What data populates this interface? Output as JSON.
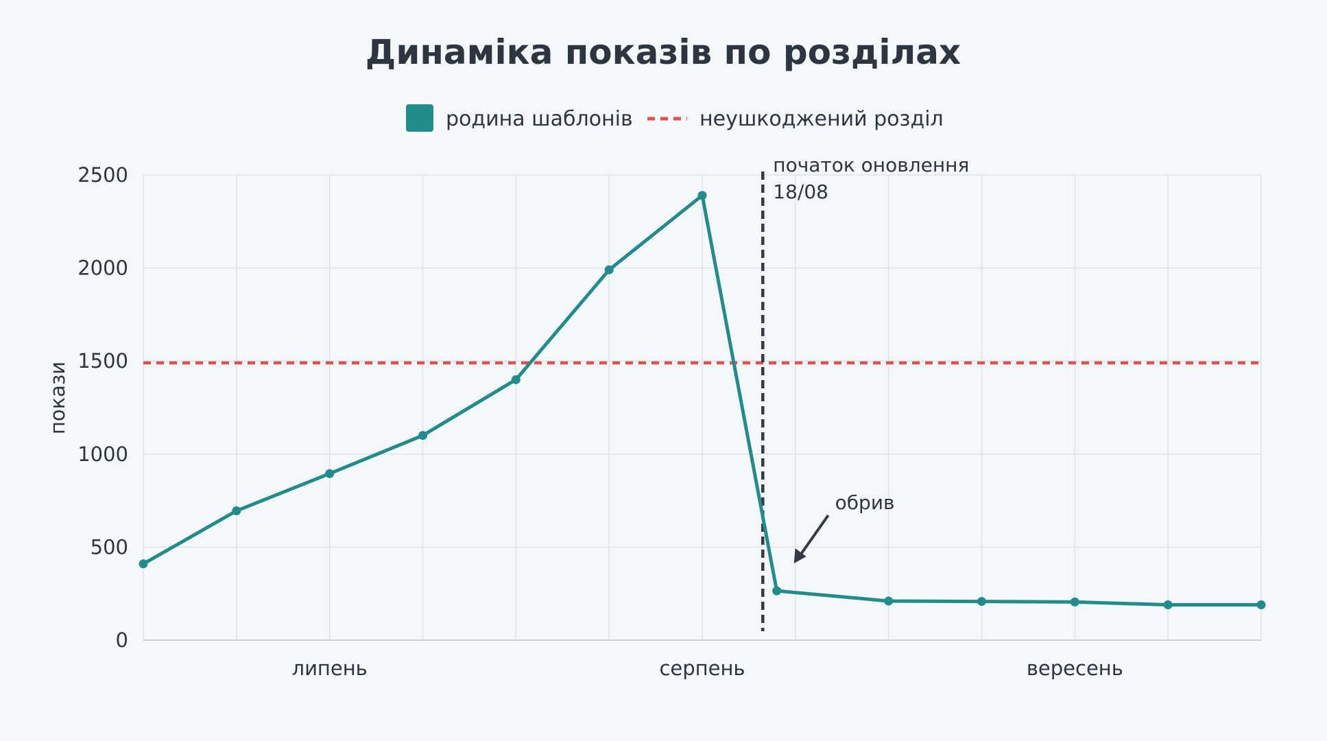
{
  "chart_data": {
    "type": "line",
    "title": "Динаміка показів по розділах",
    "ylabel": "покази",
    "xlabel": "",
    "ylim": [
      0,
      2500
    ],
    "yticks": [
      "0",
      "500",
      "1000",
      "1500",
      "2000",
      "2500"
    ],
    "xlim": [
      0,
      12
    ],
    "month_labels": [
      {
        "label": "липень",
        "x": 2
      },
      {
        "label": "серпень",
        "x": 6
      },
      {
        "label": "вересень",
        "x": 10
      }
    ],
    "grid": true,
    "legend_placement": "top-center",
    "series": [
      {
        "name": "родина шаблонів",
        "color": "#228b8b",
        "x": [
          0,
          1,
          2,
          3,
          4,
          5,
          6,
          6.8,
          8,
          9,
          10,
          11,
          12
        ],
        "values": [
          410,
          695,
          895,
          1100,
          1400,
          1990,
          2390,
          265,
          210,
          208,
          205,
          190,
          190
        ]
      }
    ],
    "reference_line": {
      "name": "неушкоджений розділ",
      "value": 1490,
      "color": "#e0504e",
      "style": "dashed"
    },
    "annotations": {
      "update_start": {
        "x": 6.65,
        "line1": "початок оновлення",
        "line2": "18/08",
        "color": "#333a44"
      },
      "drop": {
        "text": "обрив",
        "target_x": 6.8,
        "target_y": 265
      }
    }
  }
}
